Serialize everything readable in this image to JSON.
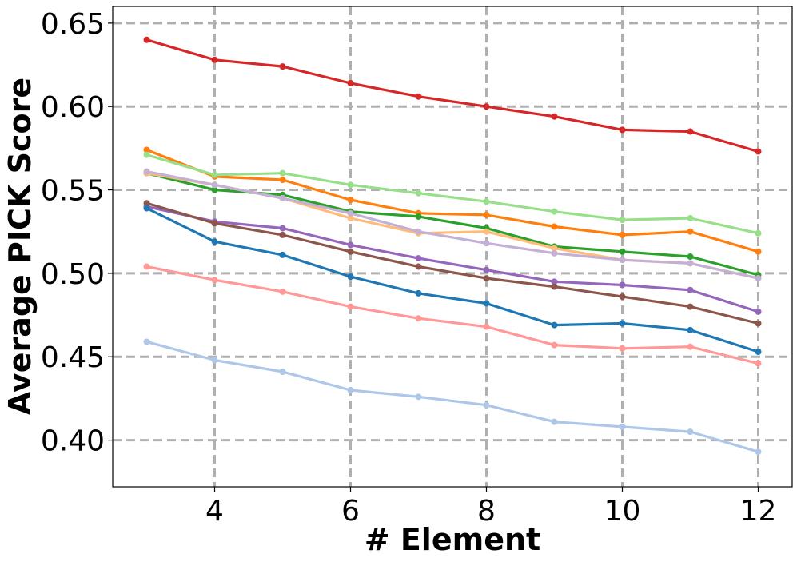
{
  "chart_data": {
    "type": "line",
    "title": "",
    "xlabel": "# Element",
    "ylabel": "Average PICK Score",
    "xlim": [
      2.5,
      12.5
    ],
    "ylim": [
      0.372,
      0.66
    ],
    "xticks": [
      4,
      6,
      8,
      10,
      12
    ],
    "yticks": [
      0.4,
      0.45,
      0.5,
      0.55,
      0.6,
      0.65
    ],
    "xtick_labels": [
      "4",
      "6",
      "8",
      "10",
      "12"
    ],
    "ytick_labels": [
      "0.40",
      "0.45",
      "0.50",
      "0.55",
      "0.60",
      "0.65"
    ],
    "grid": true,
    "grid_style": "dashed",
    "legend": "none",
    "x": [
      3,
      4,
      5,
      6,
      7,
      8,
      9,
      10,
      11,
      12
    ],
    "series": [
      {
        "color": "#d62728",
        "values": [
          0.64,
          0.628,
          0.624,
          0.614,
          0.606,
          0.6,
          0.594,
          0.586,
          0.585,
          0.573
        ]
      },
      {
        "color": "#ff7f0e",
        "values": [
          0.574,
          0.558,
          0.556,
          0.544,
          0.536,
          0.535,
          0.528,
          0.523,
          0.525,
          0.513
        ]
      },
      {
        "color": "#98df8a",
        "values": [
          0.571,
          0.559,
          0.56,
          0.553,
          0.548,
          0.543,
          0.537,
          0.532,
          0.533,
          0.524
        ]
      },
      {
        "color": "#2ca02c",
        "values": [
          0.56,
          0.55,
          0.547,
          0.537,
          0.534,
          0.527,
          0.516,
          0.513,
          0.51,
          0.499
        ]
      },
      {
        "color": "#ffbb78",
        "values": [
          0.56,
          0.553,
          0.545,
          0.533,
          0.524,
          0.525,
          0.515,
          0.508,
          0.506,
          0.497
        ]
      },
      {
        "color": "#c5b0d5",
        "values": [
          0.561,
          0.553,
          0.545,
          0.536,
          0.525,
          0.518,
          0.512,
          0.508,
          0.506,
          0.497
        ]
      },
      {
        "color": "#9467bd",
        "values": [
          0.54,
          0.531,
          0.527,
          0.517,
          0.509,
          0.502,
          0.495,
          0.493,
          0.49,
          0.477
        ]
      },
      {
        "color": "#8c564b",
        "values": [
          0.542,
          0.53,
          0.523,
          0.513,
          0.504,
          0.497,
          0.492,
          0.486,
          0.48,
          0.47
        ]
      },
      {
        "color": "#1f77b4",
        "values": [
          0.539,
          0.519,
          0.511,
          0.498,
          0.488,
          0.482,
          0.469,
          0.47,
          0.466,
          0.453
        ]
      },
      {
        "color": "#ff9896",
        "values": [
          0.504,
          0.496,
          0.489,
          0.48,
          0.473,
          0.468,
          0.457,
          0.455,
          0.456,
          0.446
        ]
      },
      {
        "color": "#aec7e8",
        "values": [
          0.459,
          0.448,
          0.441,
          0.43,
          0.426,
          0.421,
          0.411,
          0.408,
          0.405,
          0.393
        ]
      }
    ]
  }
}
